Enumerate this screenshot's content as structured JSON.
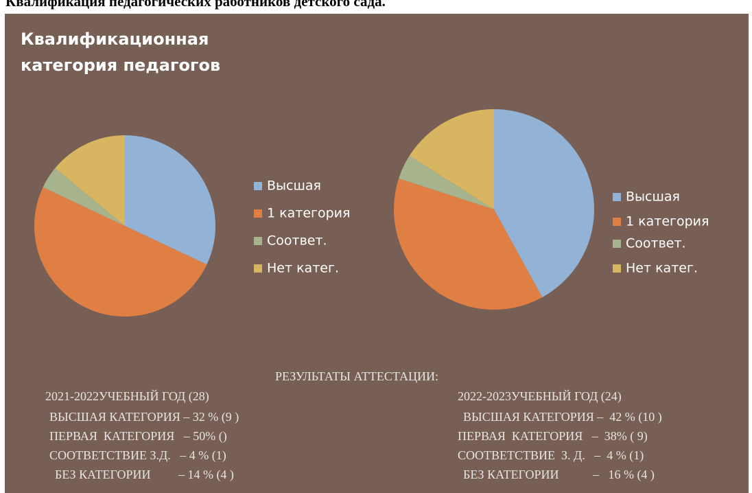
{
  "header": {
    "title": "Квалификация педагогических работников детского сада."
  },
  "chart_data": [
    {
      "type": "pie",
      "title": "Квалификационная категория педагогов",
      "categories": [
        "Высшая",
        "1 категория",
        "Соответ.",
        "Нет катег."
      ],
      "values": [
        32,
        50,
        4,
        14
      ],
      "colors": [
        "#93b3d6",
        "#df7f44",
        "#a6b38c",
        "#d8b561"
      ],
      "legend": "right"
    },
    {
      "type": "pie",
      "categories": [
        "Высшая",
        "1 категория",
        "Соответ.",
        "Нет катег."
      ],
      "values": [
        42,
        38,
        4,
        16
      ],
      "colors": [
        "#93b3d6",
        "#df7f44",
        "#a6b38c",
        "#d8b561"
      ],
      "legend": "right"
    }
  ],
  "results": {
    "title": "РЕЗУЛЬТАТЫ АТТЕСТАЦИИ:",
    "columns": [
      {
        "heading": "2021-2022УЧЕБНЫЙ ГОД (28)",
        "lines": [
          "ВЫСШАЯ КАТЕГОРИЯ – 32 % (9 )",
          "ПЕРВАЯ  КАТЕГОРИЯ   – 50% ()",
          "СООТВЕТСТВИЕ З.Д.   – 4 % (1)",
          "БЕЗ КАТЕГОРИИ         – 14 % (4 )"
        ]
      },
      {
        "heading": "2022-2023УЧЕБНЫЙ ГОД (24)",
        "lines": [
          "ВЫСШАЯ КАТЕГОРИЯ –  42 % (10 )",
          "ПЕРВАЯ  КАТЕГОРИЯ   –  38% ( 9)",
          "СООТВЕТСТВИЕ  З. Д.   –  4 % (1)",
          "БЕЗ КАТЕГОРИИ           –   16 % (4 )"
        ]
      }
    ]
  }
}
